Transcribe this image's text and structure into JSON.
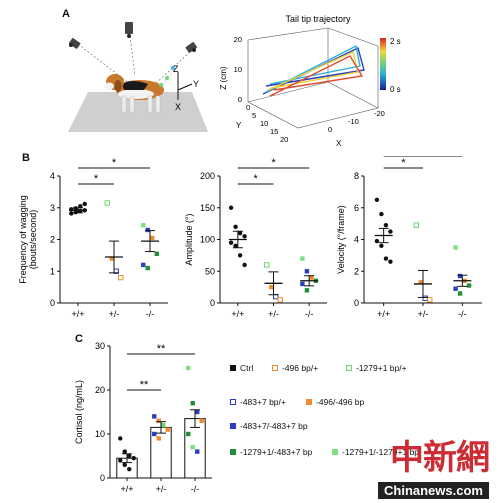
{
  "panels": {
    "a": "A",
    "b": "B",
    "c": "C"
  },
  "panel_a": {
    "trajectory_title": "Tail tip trajectory",
    "axes_3d": {
      "z_label": "Z (cm)",
      "z_ticks": [
        "20",
        "10",
        "0"
      ],
      "y_label": "Y",
      "y_ticks": [
        "0",
        "5",
        "10",
        "15",
        "20"
      ],
      "x_label": "X",
      "x_ticks": [
        "0",
        "-10",
        "-20"
      ]
    },
    "colorbar": {
      "top_label": "2 s",
      "bottom_label": "0 s"
    },
    "dog_axes": {
      "z": "Z",
      "y": "Y",
      "x": "X"
    }
  },
  "chart_data": [
    {
      "id": "frequency",
      "type": "scatter",
      "ylabel": "Frequency of wagging (bouts/second)",
      "ylim": [
        0,
        4
      ],
      "yticks": [
        0,
        1,
        2,
        3,
        4
      ],
      "categories": [
        "+/+",
        "+/-",
        "-/-"
      ],
      "means": [
        2.92,
        1.45,
        1.95
      ],
      "sems": [
        0.08,
        0.5,
        0.33
      ],
      "points": [
        [
          2.82,
          2.86,
          2.9,
          2.92,
          2.95,
          2.98,
          3.05,
          3.12
        ],
        [
          3.15,
          1.4,
          1.0,
          0.8
        ],
        [
          2.45,
          2.3,
          2.05,
          1.55,
          1.2,
          1.1
        ]
      ],
      "significance": [
        {
          "from": "+/+",
          "to": "+/-",
          "label": "*"
        },
        {
          "from": "+/+",
          "to": "-/-",
          "label": "*"
        }
      ]
    },
    {
      "id": "amplitude",
      "type": "scatter",
      "ylabel": "Amplitude (°)",
      "ylim": [
        0,
        200
      ],
      "yticks": [
        0,
        50,
        100,
        150,
        200
      ],
      "categories": [
        "+/+",
        "+/-",
        "-/-"
      ],
      "means": [
        100,
        31,
        35
      ],
      "sems": [
        13,
        18,
        8
      ],
      "points": [
        [
          150,
          120,
          110,
          105,
          95,
          90,
          75,
          60
        ],
        [
          60,
          25,
          10,
          5
        ],
        [
          70,
          50,
          40,
          35,
          30,
          20
        ]
      ],
      "significance": [
        {
          "from": "+/+",
          "to": "+/-",
          "label": "*"
        },
        {
          "from": "+/+",
          "to": "-/-",
          "label": "*"
        }
      ]
    },
    {
      "id": "velocity",
      "type": "scatter",
      "ylabel": "Velocity (°/frame)",
      "ylim": [
        0,
        8
      ],
      "yticks": [
        0,
        2,
        4,
        6,
        8
      ],
      "categories": [
        "+/+",
        "+/-",
        "-/-"
      ],
      "means": [
        4.25,
        1.2,
        1.4
      ],
      "sems": [
        0.45,
        0.85,
        0.35
      ],
      "points": [
        [
          6.5,
          5.6,
          4.9,
          4.5,
          3.9,
          3.6,
          2.8,
          2.6
        ],
        [
          4.9,
          1.3,
          0.3,
          0.2
        ],
        [
          3.5,
          1.7,
          1.4,
          1.1,
          0.9,
          0.6
        ]
      ],
      "significance": [
        {
          "from": "+/+",
          "to": "+/-",
          "label": "*"
        },
        {
          "from": "+/+",
          "to": "-/-",
          "label": "*"
        }
      ]
    },
    {
      "id": "cortisol",
      "type": "bar",
      "ylabel": "Cortisol (ng/mL)",
      "ylim": [
        0,
        30
      ],
      "yticks": [
        0,
        10,
        20,
        30
      ],
      "categories": [
        "+/+",
        "+/-",
        "-/-"
      ],
      "values": [
        4.5,
        11.5,
        13.5
      ],
      "sems": [
        1.0,
        1.3,
        2.0
      ],
      "points": [
        [
          9,
          6,
          5,
          4.5,
          4,
          3,
          2
        ],
        [
          14,
          13,
          12,
          11,
          10,
          9
        ],
        [
          25,
          17,
          15,
          13,
          10,
          7,
          6
        ]
      ],
      "significance": [
        {
          "from": "+/+",
          "to": "+/-",
          "label": "**"
        },
        {
          "from": "+/+",
          "to": "-/-",
          "label": "**"
        }
      ]
    }
  ],
  "legend": {
    "items": [
      {
        "label": "Ctrl",
        "color": "#111111",
        "style": "filled"
      },
      {
        "label": "-496 bp/+",
        "color": "#f08c2e",
        "style": "open"
      },
      {
        "label": "-1279+1 bp/+",
        "color": "#6fd36f",
        "style": "open"
      },
      {
        "label": "-483+7 bp/+",
        "color": "#2a3fbf",
        "style": "open"
      },
      {
        "label": "-496/-496 bp",
        "color": "#f08c2e",
        "style": "filled"
      },
      {
        "label": "-483+7/-483+7 bp",
        "color": "#2a3fbf",
        "style": "filled"
      },
      {
        "label": "-1279+1/-483+7 bp",
        "color": "#1f8f3a",
        "style": "filled"
      },
      {
        "label": "-1279+1/-1279+1 bp",
        "color": "#7fe07f",
        "style": "filled"
      }
    ]
  },
  "colors": {
    "black": "#111111",
    "orange": "#f08c2e",
    "green_light": "#6fd36f",
    "blue": "#2a3fbf",
    "green_dark": "#1f8f3a",
    "green_bright": "#7fe07f"
  },
  "watermark": {
    "chinese": "中新網",
    "site": "Chinanews.com"
  }
}
